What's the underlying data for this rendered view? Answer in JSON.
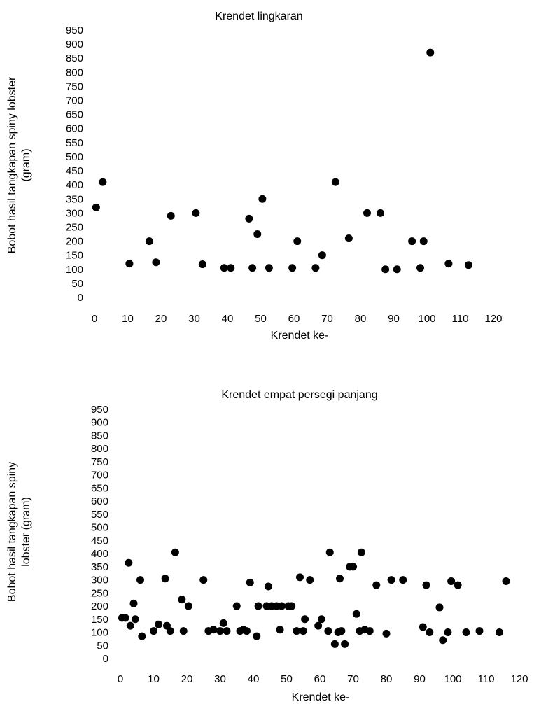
{
  "chart_data": [
    {
      "type": "scatter",
      "title": "Krendet lingkaran",
      "xlabel": "Krendet ke-",
      "ylabel_lines": [
        "Bobot hasil tangkapan spiny lobster",
        "(gram)"
      ],
      "xlim": [
        0,
        120
      ],
      "ylim": [
        0,
        950
      ],
      "xticks": [
        0,
        10,
        20,
        30,
        40,
        50,
        60,
        70,
        80,
        90,
        100,
        110,
        120
      ],
      "yticks": [
        0,
        50,
        100,
        150,
        200,
        250,
        300,
        350,
        400,
        450,
        500,
        550,
        600,
        650,
        700,
        750,
        800,
        850,
        900,
        950
      ],
      "grid": false,
      "points": [
        [
          0.5,
          320
        ],
        [
          2.5,
          410
        ],
        [
          10.5,
          120
        ],
        [
          16.5,
          200
        ],
        [
          18.5,
          125
        ],
        [
          23,
          290
        ],
        [
          30.5,
          300
        ],
        [
          32.5,
          118
        ],
        [
          39,
          105
        ],
        [
          41,
          105
        ],
        [
          46.5,
          280
        ],
        [
          47.5,
          105
        ],
        [
          49,
          225
        ],
        [
          50.5,
          350
        ],
        [
          52.5,
          105
        ],
        [
          59.5,
          105
        ],
        [
          61,
          200
        ],
        [
          66.5,
          105
        ],
        [
          68.5,
          150
        ],
        [
          72.5,
          410
        ],
        [
          76.5,
          210
        ],
        [
          82,
          300
        ],
        [
          86,
          300
        ],
        [
          87.5,
          100
        ],
        [
          91,
          100
        ],
        [
          95.5,
          200
        ],
        [
          98,
          105
        ],
        [
          99,
          200
        ],
        [
          101,
          870
        ],
        [
          106.5,
          120
        ],
        [
          112.5,
          115
        ]
      ]
    },
    {
      "type": "scatter",
      "title": "Krendet empat persegi panjang",
      "xlabel": "Krendet ke-",
      "ylabel_lines": [
        "Bobot hasil tangkapan spiny",
        "lobster (gram)"
      ],
      "xlim": [
        0,
        120
      ],
      "ylim": [
        0,
        950
      ],
      "xticks": [
        0,
        10,
        20,
        30,
        40,
        50,
        60,
        70,
        80,
        90,
        100,
        110,
        120
      ],
      "yticks": [
        0,
        50,
        100,
        150,
        200,
        250,
        300,
        350,
        400,
        450,
        500,
        550,
        600,
        650,
        700,
        750,
        800,
        850,
        900,
        950
      ],
      "grid": false,
      "points": [
        [
          0.5,
          155
        ],
        [
          1.5,
          155
        ],
        [
          2.5,
          365
        ],
        [
          3,
          125
        ],
        [
          4,
          210
        ],
        [
          4.5,
          150
        ],
        [
          6,
          300
        ],
        [
          6.5,
          85
        ],
        [
          10,
          105
        ],
        [
          11.5,
          130
        ],
        [
          13.5,
          305
        ],
        [
          14,
          125
        ],
        [
          15,
          105
        ],
        [
          16.5,
          405
        ],
        [
          18.5,
          225
        ],
        [
          19,
          105
        ],
        [
          20.5,
          200
        ],
        [
          25,
          300
        ],
        [
          26.5,
          105
        ],
        [
          28,
          110
        ],
        [
          30,
          105
        ],
        [
          31,
          135
        ],
        [
          32,
          105
        ],
        [
          35,
          200
        ],
        [
          36,
          105
        ],
        [
          37,
          110
        ],
        [
          38,
          105
        ],
        [
          39,
          290
        ],
        [
          41,
          85
        ],
        [
          41.5,
          200
        ],
        [
          44,
          200
        ],
        [
          44.5,
          275
        ],
        [
          45.5,
          200
        ],
        [
          47,
          200
        ],
        [
          48,
          110
        ],
        [
          48.5,
          200
        ],
        [
          50.5,
          200
        ],
        [
          51.5,
          200
        ],
        [
          53,
          105
        ],
        [
          54,
          310
        ],
        [
          55,
          105
        ],
        [
          55.5,
          150
        ],
        [
          57,
          300
        ],
        [
          59.5,
          125
        ],
        [
          60.5,
          150
        ],
        [
          62.5,
          105
        ],
        [
          63,
          405
        ],
        [
          64.5,
          55
        ],
        [
          65.5,
          100
        ],
        [
          66,
          305
        ],
        [
          66.5,
          105
        ],
        [
          67.5,
          55
        ],
        [
          69,
          350
        ],
        [
          70,
          350
        ],
        [
          71,
          170
        ],
        [
          72,
          105
        ],
        [
          72.5,
          405
        ],
        [
          73.5,
          110
        ],
        [
          75,
          105
        ],
        [
          77,
          280
        ],
        [
          80,
          95
        ],
        [
          81.5,
          300
        ],
        [
          85,
          300
        ],
        [
          91,
          120
        ],
        [
          92,
          280
        ],
        [
          93,
          100
        ],
        [
          96,
          195
        ],
        [
          97,
          70
        ],
        [
          98.5,
          100
        ],
        [
          99.5,
          295
        ],
        [
          101.5,
          280
        ],
        [
          104,
          100
        ],
        [
          108,
          105
        ],
        [
          114,
          100
        ],
        [
          116,
          295
        ]
      ]
    }
  ]
}
